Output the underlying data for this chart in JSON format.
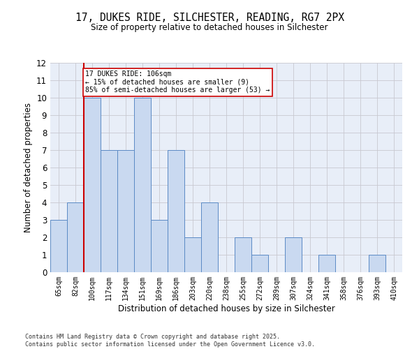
{
  "title_line1": "17, DUKES RIDE, SILCHESTER, READING, RG7 2PX",
  "title_line2": "Size of property relative to detached houses in Silchester",
  "xlabel": "Distribution of detached houses by size in Silchester",
  "ylabel": "Number of detached properties",
  "categories": [
    "65sqm",
    "82sqm",
    "100sqm",
    "117sqm",
    "134sqm",
    "151sqm",
    "169sqm",
    "186sqm",
    "203sqm",
    "220sqm",
    "238sqm",
    "255sqm",
    "272sqm",
    "289sqm",
    "307sqm",
    "324sqm",
    "341sqm",
    "358sqm",
    "376sqm",
    "393sqm",
    "410sqm"
  ],
  "values": [
    3,
    4,
    10,
    7,
    7,
    10,
    3,
    7,
    2,
    4,
    0,
    2,
    1,
    0,
    2,
    0,
    1,
    0,
    0,
    1,
    0
  ],
  "bar_color": "#c9d9f0",
  "bar_edge_color": "#5b8ac5",
  "highlight_index": 2,
  "highlight_line_color": "#cc0000",
  "ylim": [
    0,
    12
  ],
  "yticks": [
    0,
    1,
    2,
    3,
    4,
    5,
    6,
    7,
    8,
    9,
    10,
    11,
    12
  ],
  "annotation_text": "17 DUKES RIDE: 106sqm\n← 15% of detached houses are smaller (9)\n85% of semi-detached houses are larger (53) →",
  "annotation_box_color": "#ffffff",
  "annotation_box_edge": "#cc0000",
  "footer_line1": "Contains HM Land Registry data © Crown copyright and database right 2025.",
  "footer_line2": "Contains public sector information licensed under the Open Government Licence v3.0.",
  "bg_color": "#ffffff",
  "grid_color": "#c8c8d0",
  "plot_bg_color": "#e8eef8"
}
